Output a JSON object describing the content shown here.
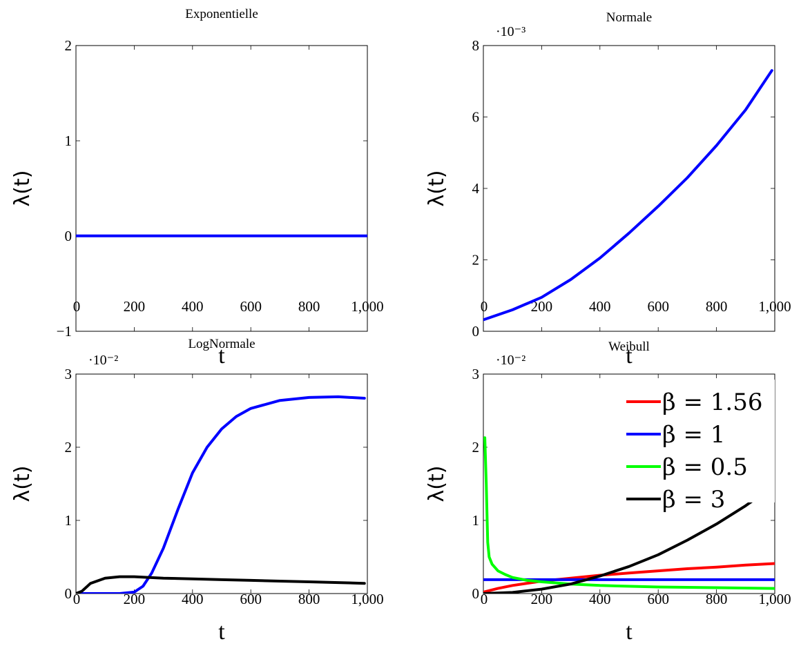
{
  "chart_data": [
    {
      "id": "exp",
      "type": "line",
      "title": "Exponentielle",
      "xlabel": "t",
      "ylabel": "λ(t)",
      "xlim": [
        0,
        1000
      ],
      "ylim": [
        -1,
        2
      ],
      "x_ticks": [
        0,
        200,
        400,
        600,
        800,
        1000
      ],
      "x_tick_labels": [
        "0",
        "200",
        "400",
        "600",
        "800",
        "1,000"
      ],
      "y_ticks": [
        -1,
        0,
        1,
        2
      ],
      "y_tick_labels": [
        "−1",
        "0",
        "1",
        "2"
      ],
      "scale_note": "",
      "series": [
        {
          "color": "#0000ff",
          "x": [
            0,
            1000
          ],
          "y": [
            0.0018,
            0.0018
          ]
        }
      ]
    },
    {
      "id": "normal",
      "type": "line",
      "title": "Normale",
      "xlabel": "t",
      "ylabel": "λ(t)",
      "xlim": [
        0,
        1000
      ],
      "ylim": [
        0,
        8
      ],
      "x_ticks": [
        0,
        200,
        400,
        600,
        800,
        1000
      ],
      "x_tick_labels": [
        "0",
        "200",
        "400",
        "600",
        "800",
        "1,000"
      ],
      "y_ticks": [
        0,
        2,
        4,
        6,
        8
      ],
      "y_tick_labels": [
        "0",
        "2",
        "4",
        "6",
        "8"
      ],
      "scale_note": "·10⁻³",
      "series": [
        {
          "color": "#0000ff",
          "x": [
            0,
            100,
            200,
            300,
            400,
            500,
            600,
            700,
            800,
            900,
            990
          ],
          "y": [
            0.32,
            0.6,
            0.95,
            1.45,
            2.05,
            2.75,
            3.5,
            4.3,
            5.2,
            6.2,
            7.3
          ]
        }
      ]
    },
    {
      "id": "lognormal",
      "type": "line",
      "title": "LogNormale",
      "xlabel": "t",
      "ylabel": "λ(t)",
      "xlim": [
        0,
        1000
      ],
      "ylim": [
        0,
        3
      ],
      "x_ticks": [
        0,
        200,
        400,
        600,
        800,
        1000
      ],
      "x_tick_labels": [
        "0",
        "200",
        "400",
        "600",
        "800",
        "1,000"
      ],
      "y_ticks": [
        0,
        1,
        2,
        3
      ],
      "y_tick_labels": [
        "0",
        "1",
        "2",
        "3"
      ],
      "scale_note": "·10⁻²",
      "series": [
        {
          "color": "#0000ff",
          "x": [
            0,
            150,
            200,
            230,
            260,
            300,
            350,
            400,
            450,
            500,
            550,
            600,
            700,
            800,
            900,
            990
          ],
          "y": [
            0,
            0,
            0.02,
            0.1,
            0.28,
            0.62,
            1.15,
            1.65,
            2.0,
            2.25,
            2.42,
            2.53,
            2.64,
            2.68,
            2.69,
            2.67
          ]
        },
        {
          "color": "#000000",
          "x": [
            0,
            20,
            50,
            100,
            150,
            200,
            300,
            400,
            500,
            600,
            700,
            800,
            900,
            990
          ],
          "y": [
            0,
            0.03,
            0.14,
            0.21,
            0.23,
            0.23,
            0.21,
            0.2,
            0.19,
            0.18,
            0.17,
            0.16,
            0.15,
            0.14
          ]
        }
      ]
    },
    {
      "id": "weibull",
      "type": "line",
      "title": "Weibull",
      "xlabel": "t",
      "ylabel": "λ(t)",
      "xlim": [
        0,
        1000
      ],
      "ylim": [
        0,
        3
      ],
      "x_ticks": [
        0,
        200,
        400,
        600,
        800,
        1000
      ],
      "x_tick_labels": [
        "0",
        "200",
        "400",
        "600",
        "800",
        "1,000"
      ],
      "y_ticks": [
        0,
        1,
        2,
        3
      ],
      "y_tick_labels": [
        "0",
        "1",
        "2",
        "3"
      ],
      "scale_note": "·10⁻²",
      "legend_position": "top-right",
      "series": [
        {
          "name": "β = 1.56",
          "color": "#ff0000",
          "x": [
            0,
            50,
            100,
            200,
            300,
            400,
            500,
            600,
            700,
            800,
            900,
            1000
          ],
          "y": [
            0.02,
            0.07,
            0.11,
            0.17,
            0.21,
            0.25,
            0.28,
            0.31,
            0.34,
            0.36,
            0.39,
            0.41
          ]
        },
        {
          "name": "β = 1",
          "color": "#0000ff",
          "x": [
            0,
            1000
          ],
          "y": [
            0.19,
            0.19
          ]
        },
        {
          "name": "β = 0.5",
          "color": "#00ff00",
          "x": [
            5,
            10,
            15,
            20,
            30,
            50,
            75,
            100,
            150,
            200,
            300,
            400,
            600,
            800,
            1000
          ],
          "y": [
            2.13,
            1.5,
            0.7,
            0.5,
            0.4,
            0.31,
            0.26,
            0.22,
            0.18,
            0.16,
            0.13,
            0.11,
            0.09,
            0.08,
            0.07
          ]
        },
        {
          "name": "β = 3",
          "color": "#000000",
          "x": [
            0,
            100,
            200,
            300,
            400,
            500,
            600,
            700,
            800,
            900,
            1000
          ],
          "y": [
            0,
            0.015,
            0.06,
            0.13,
            0.24,
            0.37,
            0.53,
            0.73,
            0.95,
            1.2,
            1.48
          ]
        }
      ]
    }
  ]
}
